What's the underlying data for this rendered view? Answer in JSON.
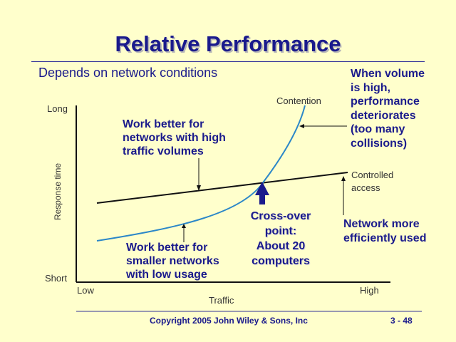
{
  "slide": {
    "title": "Relative Performance",
    "subtitle": "Depends on network conditions",
    "footer": {
      "copyright": "Copyright 2005 John Wiley & Sons, Inc",
      "page": "3 - 48"
    }
  },
  "axes": {
    "y_label": "Response time",
    "y_top": "Long",
    "y_bottom": "Short",
    "x_label": "Traffic",
    "x_left": "Low",
    "x_right": "High"
  },
  "curves": {
    "contention_label": "Contention",
    "controlled_label_1": "Controlled",
    "controlled_label_2": "access",
    "contention_color": "#2b87c8",
    "controlled_color": "#111111"
  },
  "annotations": {
    "high_traffic": [
      "Work better for",
      "networks with high",
      "traffic volumes"
    ],
    "low_usage": [
      "Work better for",
      "smaller networks",
      "with low usage"
    ],
    "crossover": [
      "Cross-over",
      "point:",
      "About 20",
      "computers"
    ],
    "volume_high": [
      "When volume",
      "is high,",
      "performance",
      "deteriorates",
      "(too many",
      "collisions)"
    ],
    "efficient": [
      "Network more",
      "efficiently used"
    ]
  },
  "colors": {
    "background": "#ffffcc",
    "text_blue": "#1a1a8c",
    "marker": "#1a1a8c"
  }
}
